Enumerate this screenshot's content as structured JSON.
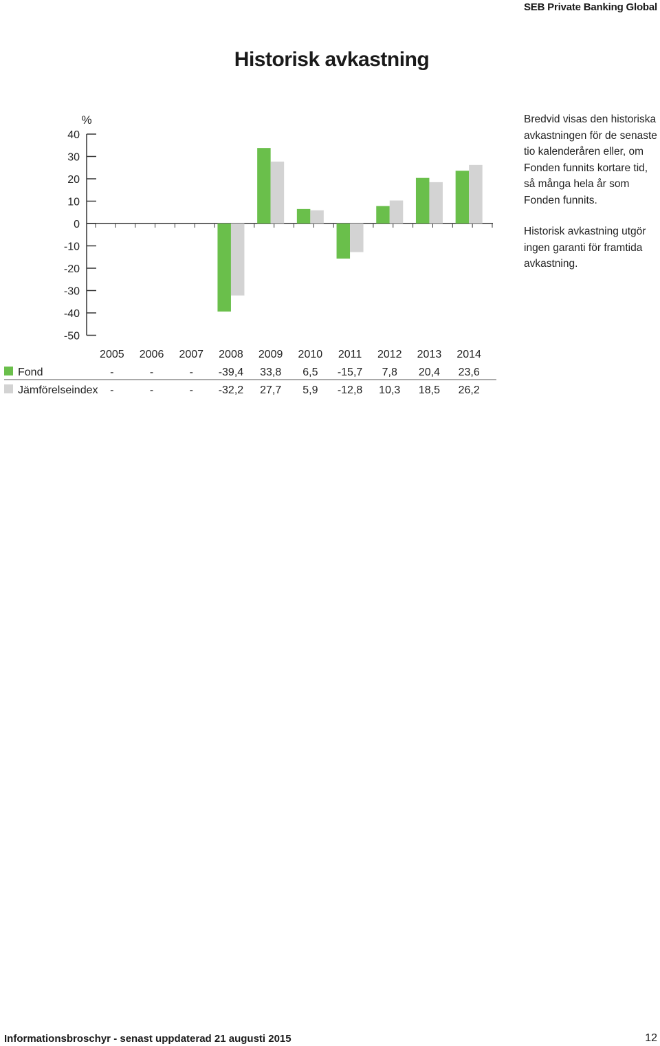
{
  "header": {
    "brand": "SEB Private Banking Global"
  },
  "page": {
    "title": "Historisk avkastning"
  },
  "description": {
    "paragraph1": "Bredvid visas den historiska avkastningen för de senaste tio kalenderåren eller, om Fonden funnits kortare tid, så många hela år som Fonden funnits.",
    "paragraph2": "Historisk avkastning utgör ingen garanti för framtida avkastning."
  },
  "chart_data": {
    "type": "bar",
    "ylabel": "%",
    "ylim": [
      -50,
      40
    ],
    "yticks": [
      40,
      30,
      20,
      10,
      0,
      -10,
      -20,
      -30,
      -40,
      -50
    ],
    "categories": [
      "2005",
      "2006",
      "2007",
      "2008",
      "2009",
      "2010",
      "2011",
      "2012",
      "2013",
      "2014"
    ],
    "series": [
      {
        "name": "Fond",
        "color": "#6abf4b",
        "values": [
          null,
          null,
          null,
          -39.4,
          33.8,
          6.5,
          -15.7,
          7.8,
          20.4,
          23.6
        ],
        "labels": [
          "-",
          "-",
          "-",
          "-39,4",
          "33,8",
          "6,5",
          "-15,7",
          "7,8",
          "20,4",
          "23,6"
        ]
      },
      {
        "name": "Jämförelseindex",
        "color": "#d3d3d3",
        "values": [
          null,
          null,
          null,
          -32.2,
          27.7,
          5.9,
          -12.8,
          10.3,
          18.5,
          26.2
        ],
        "labels": [
          "-",
          "-",
          "-",
          "-32,2",
          "27,7",
          "5,9",
          "-12,8",
          "10,3",
          "18,5",
          "26,2"
        ]
      }
    ]
  },
  "footer": {
    "left": "Informationsbroschyr - senast uppdaterad 21 augusti 2015",
    "page_number": "12"
  }
}
